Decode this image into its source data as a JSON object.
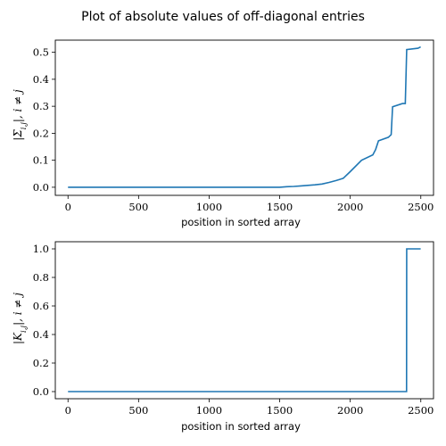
{
  "figure": {
    "title": "Plot of absolute values of off-diagonal entries"
  },
  "chart_data": [
    {
      "type": "line",
      "xlabel": "position in sorted array",
      "ylabel": "|Σ_{i,j}|, i ≠ j",
      "xlim": [
        -90,
        2590
      ],
      "ylim": [
        -0.03,
        0.545
      ],
      "xticks": [
        0,
        500,
        1000,
        1500,
        2000,
        2500
      ],
      "yticks": [
        0.0,
        0.1,
        0.2,
        0.3,
        0.4,
        0.5
      ],
      "ytick_labels": [
        "0.0",
        "0.1",
        "0.2",
        "0.3",
        "0.4",
        "0.5"
      ],
      "grid": false,
      "color": "#1f77b4",
      "x": [
        0,
        1500,
        1550,
        1600,
        1650,
        1700,
        1750,
        1800,
        1850,
        1900,
        1950,
        2000,
        2080,
        2160,
        2180,
        2200,
        2270,
        2290,
        2300,
        2370,
        2390,
        2400,
        2480,
        2499
      ],
      "y": [
        0.0,
        0.0,
        0.002,
        0.003,
        0.005,
        0.007,
        0.009,
        0.012,
        0.018,
        0.025,
        0.033,
        0.058,
        0.1,
        0.12,
        0.14,
        0.172,
        0.185,
        0.195,
        0.298,
        0.31,
        0.31,
        0.51,
        0.515,
        0.52
      ]
    },
    {
      "type": "line",
      "xlabel": "position in sorted array",
      "ylabel": "|K_{i,j}|, i ≠ j",
      "xlim": [
        -90,
        2590
      ],
      "ylim": [
        -0.05,
        1.05
      ],
      "xticks": [
        0,
        500,
        1000,
        1500,
        2000,
        2500
      ],
      "yticks": [
        0.0,
        0.2,
        0.4,
        0.6,
        0.8,
        1.0
      ],
      "ytick_labels": [
        "0.0",
        "0.2",
        "0.4",
        "0.6",
        "0.8",
        "1.0"
      ],
      "grid": false,
      "color": "#1f77b4",
      "x": [
        0,
        2399,
        2400,
        2499
      ],
      "y": [
        0.0,
        0.0,
        1.0,
        1.0
      ]
    }
  ]
}
